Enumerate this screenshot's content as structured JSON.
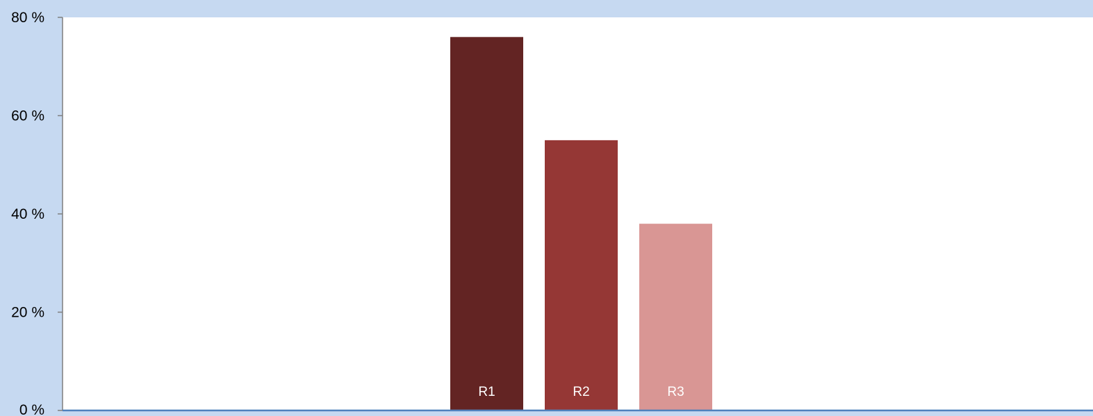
{
  "chart_data": {
    "type": "bar",
    "title": "",
    "xlabel": "",
    "ylabel": "",
    "ylim": [
      0,
      80
    ],
    "yticks": [
      0,
      20,
      40,
      60,
      80
    ],
    "ytick_labels": [
      "0 %",
      "20 %",
      "40 %",
      "60 %",
      "80 %"
    ],
    "grid": false,
    "legend": "none",
    "categories": [
      "R1",
      "R2",
      "R3"
    ],
    "values": [
      76,
      55,
      38
    ],
    "colors": [
      "#632423",
      "#953735",
      "#d99694"
    ],
    "background_color": "#c6d9f1",
    "plot_background_color": "#ffffff",
    "baseline_color": "#4f81bd"
  }
}
